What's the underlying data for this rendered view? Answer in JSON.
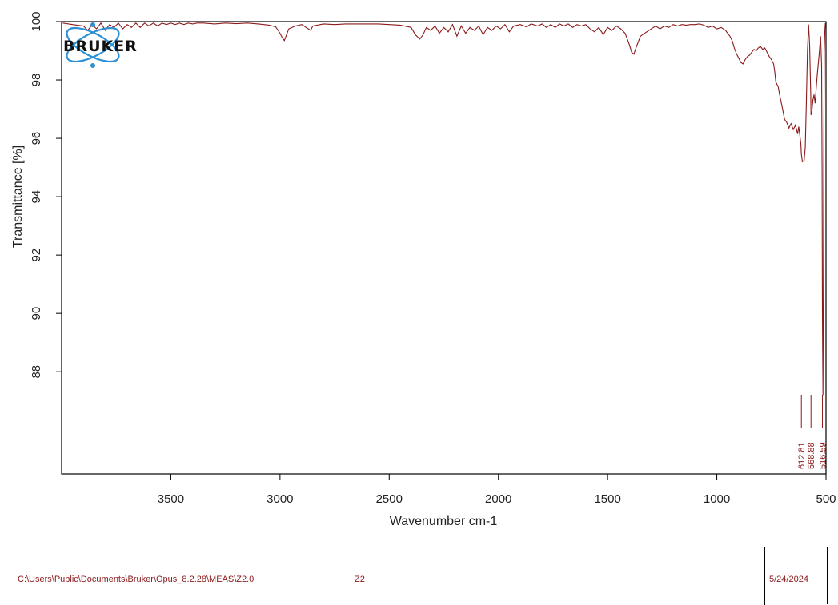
{
  "chart_data": {
    "type": "line",
    "xlabel": "Wavenumber cm-1",
    "ylabel": "Transmittance [%]",
    "xlim": [
      4000,
      500
    ],
    "ylim": [
      84.5,
      100
    ],
    "x_reversed": true,
    "xticks": [
      3500,
      3000,
      2500,
      2000,
      1500,
      1000,
      500
    ],
    "yticks": [
      100,
      98,
      96,
      94,
      92,
      90,
      88
    ],
    "grid": false,
    "series": [
      {
        "color": "#8b1a1a",
        "x": [
          3995,
          3950,
          3900,
          3880,
          3860,
          3840,
          3820,
          3800,
          3780,
          3760,
          3740,
          3720,
          3700,
          3680,
          3660,
          3640,
          3620,
          3600,
          3580,
          3560,
          3540,
          3520,
          3500,
          3480,
          3460,
          3440,
          3420,
          3400,
          3380,
          3350,
          3300,
          3250,
          3200,
          3150,
          3100,
          3050,
          3020,
          3000,
          2990,
          2980,
          2960,
          2930,
          2900,
          2860,
          2850,
          2800,
          2750,
          2700,
          2650,
          2600,
          2550,
          2500,
          2450,
          2400,
          2380,
          2360,
          2345,
          2330,
          2310,
          2290,
          2270,
          2250,
          2230,
          2210,
          2190,
          2170,
          2150,
          2130,
          2110,
          2090,
          2070,
          2050,
          2030,
          2010,
          1990,
          1970,
          1950,
          1930,
          1900,
          1870,
          1850,
          1820,
          1800,
          1780,
          1760,
          1740,
          1720,
          1700,
          1680,
          1660,
          1640,
          1620,
          1600,
          1580,
          1560,
          1540,
          1520,
          1500,
          1480,
          1460,
          1440,
          1420,
          1400,
          1390,
          1380,
          1370,
          1350,
          1330,
          1300,
          1280,
          1260,
          1240,
          1220,
          1200,
          1180,
          1160,
          1140,
          1120,
          1100,
          1080,
          1060,
          1040,
          1020,
          1000,
          980,
          960,
          940,
          930,
          920,
          910,
          900,
          890,
          880,
          870,
          860,
          850,
          840,
          830,
          820,
          810,
          800,
          790,
          780,
          770,
          760,
          750,
          740,
          735,
          730,
          725,
          720,
          710,
          700,
          690,
          680,
          670,
          660,
          650,
          640,
          630,
          625,
          620,
          615,
          612.81,
          608,
          600,
          595,
          590,
          585,
          580,
          575,
          570,
          568.88,
          565,
          560,
          555,
          550,
          545,
          540,
          535,
          530,
          525,
          520,
          518,
          516.59,
          514,
          512,
          510,
          508,
          505,
          503
        ],
        "y": [
          99.95,
          99.9,
          99.85,
          99.7,
          99.9,
          99.75,
          99.95,
          99.7,
          99.9,
          99.8,
          99.95,
          99.75,
          99.9,
          99.8,
          99.95,
          99.8,
          99.95,
          99.85,
          99.95,
          99.85,
          99.95,
          99.9,
          99.95,
          99.9,
          99.95,
          99.9,
          99.95,
          99.92,
          99.95,
          99.95,
          99.92,
          99.95,
          99.93,
          99.95,
          99.92,
          99.88,
          99.82,
          99.6,
          99.45,
          99.35,
          99.75,
          99.85,
          99.9,
          99.7,
          99.85,
          99.92,
          99.9,
          99.92,
          99.92,
          99.92,
          99.92,
          99.9,
          99.88,
          99.8,
          99.55,
          99.4,
          99.55,
          99.8,
          99.7,
          99.85,
          99.6,
          99.8,
          99.65,
          99.9,
          99.5,
          99.85,
          99.6,
          99.8,
          99.7,
          99.85,
          99.55,
          99.8,
          99.7,
          99.85,
          99.75,
          99.9,
          99.65,
          99.85,
          99.9,
          99.82,
          99.92,
          99.85,
          99.92,
          99.8,
          99.9,
          99.8,
          99.92,
          99.85,
          99.92,
          99.8,
          99.9,
          99.85,
          99.9,
          99.75,
          99.65,
          99.8,
          99.55,
          99.8,
          99.7,
          99.85,
          99.75,
          99.6,
          99.2,
          98.95,
          98.88,
          99.1,
          99.5,
          99.6,
          99.75,
          99.85,
          99.75,
          99.85,
          99.8,
          99.9,
          99.85,
          99.9,
          99.88,
          99.9,
          99.9,
          99.92,
          99.88,
          99.8,
          99.85,
          99.75,
          99.8,
          99.7,
          99.5,
          99.35,
          99.1,
          98.9,
          98.75,
          98.6,
          98.55,
          98.7,
          98.8,
          98.85,
          98.95,
          99.05,
          99.0,
          99.1,
          99.15,
          99.05,
          99.1,
          98.95,
          98.8,
          98.7,
          98.55,
          98.3,
          97.95,
          97.85,
          97.8,
          97.4,
          97.05,
          96.65,
          96.55,
          96.35,
          96.5,
          96.3,
          96.45,
          96.15,
          96.4,
          96.1,
          95.8,
          95.45,
          95.2,
          95.25,
          95.7,
          97.2,
          99.0,
          99.9,
          99.2,
          97.5,
          96.8,
          96.9,
          97.3,
          97.5,
          97.2,
          97.7,
          98.2,
          98.6,
          99.0,
          99.5,
          98.5,
          95.0,
          90.0,
          87.2,
          91.0,
          96.0,
          99.0,
          99.7,
          99.95
        ]
      }
    ],
    "peak_labels": [
      {
        "x": 612.81,
        "label": "612.81"
      },
      {
        "x": 568.88,
        "label": "568.88"
      },
      {
        "x": 516.59,
        "label": "516.59"
      }
    ]
  },
  "logo": {
    "text": "BRUKER"
  },
  "footer": {
    "path": "C:\\Users\\Public\\Documents\\Bruker\\Opus_8.2.28\\MEAS\\Z2.0",
    "name": "Z2",
    "date": "5/24/2024"
  }
}
